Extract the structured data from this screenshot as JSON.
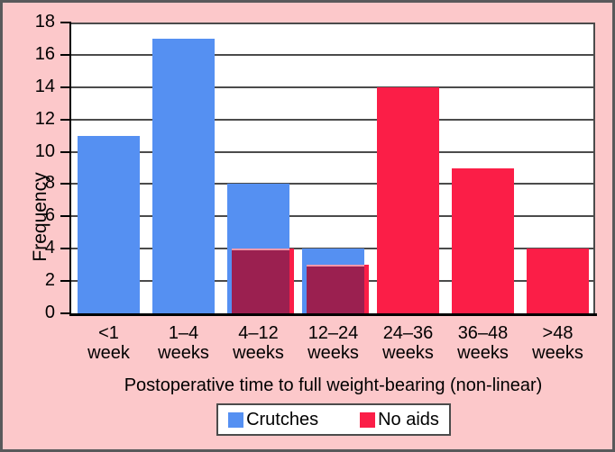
{
  "chart_data": {
    "type": "bar",
    "title": "",
    "xlabel": "Postoperative time to full weight-bearing (non-linear)",
    "ylabel": "Frequency",
    "categories": [
      "<1 week",
      "1–4 weeks",
      "4–12 weeks",
      "12–24 weeks",
      "24–36 weeks",
      "36–48 weeks",
      ">48 weeks"
    ],
    "series": [
      {
        "name": "Crutches",
        "color": "#5590F2",
        "values": [
          11,
          17,
          8,
          4,
          0,
          0,
          0
        ]
      },
      {
        "name": "No aids",
        "color": "#FB1E47",
        "values": [
          0,
          0,
          4,
          3,
          14,
          9,
          4
        ]
      }
    ],
    "overlap_color": "#9B2050",
    "ylim": [
      0,
      18
    ],
    "ytick_step": 2,
    "yticks": [
      0,
      2,
      4,
      6,
      8,
      10,
      12,
      14,
      16,
      18
    ],
    "grid": "horizontal",
    "legend_position": "bottom"
  },
  "colors": {
    "background": "#FCC8CA",
    "plot_background": "#ffffff",
    "frame_border": "#59595B",
    "gridline": "#4B4B4B",
    "axis": "#000000",
    "crutches_blue": "#5590F2",
    "no_aids_red": "#FB1E47",
    "overlap_maroon": "#9B2050"
  }
}
